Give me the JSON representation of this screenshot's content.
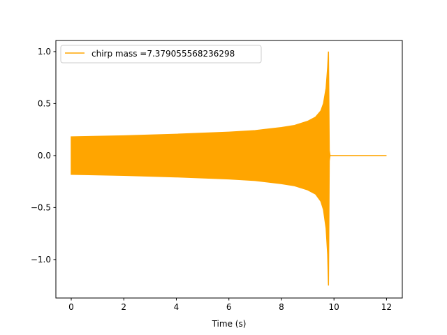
{
  "chart_data": {
    "type": "line",
    "xlabel": "Time (s)",
    "ylabel": "",
    "xlim": [
      -0.585,
      12.6
    ],
    "ylim": [
      -1.37,
      1.107
    ],
    "xticks": [
      0,
      2,
      4,
      6,
      8,
      10,
      12
    ],
    "xtick_labels": [
      "0",
      "2",
      "4",
      "6",
      "8",
      "10",
      "12"
    ],
    "yticks": [
      1.0,
      0.5,
      0.0,
      -0.5,
      -1.0
    ],
    "ytick_labels": [
      "1.0",
      "0.5",
      "0.0",
      "−0.5",
      "−1.0"
    ],
    "grid": false,
    "legend_position": "top-left",
    "series": [
      {
        "name": "chirp mass =7.379055568236298",
        "color": "#ffa500",
        "envelope_t": [
          0,
          2,
          4,
          6,
          7,
          8,
          8.5,
          9,
          9.3,
          9.5,
          9.6,
          9.7,
          9.76,
          9.79,
          9.82,
          9.85
        ],
        "envelope_upper": [
          0.18,
          0.19,
          0.205,
          0.225,
          0.24,
          0.27,
          0.29,
          0.33,
          0.37,
          0.43,
          0.5,
          0.65,
          0.85,
          1.0,
          0.05,
          0.0
        ],
        "envelope_lower": [
          -0.18,
          -0.19,
          -0.205,
          -0.225,
          -0.24,
          -0.27,
          -0.29,
          -0.33,
          -0.37,
          -0.44,
          -0.52,
          -0.7,
          -0.95,
          -1.25,
          -0.05,
          0.0
        ],
        "tail": {
          "t": [
            9.85,
            12
          ],
          "y": [
            0,
            0
          ]
        }
      }
    ]
  }
}
